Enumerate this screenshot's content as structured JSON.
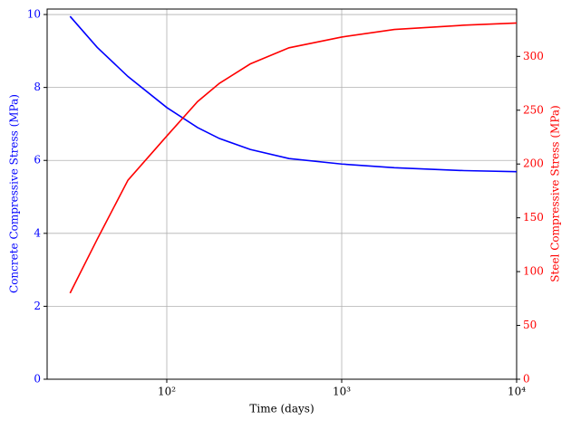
{
  "chart_data": {
    "type": "line",
    "x_label": "Time (days)",
    "y_label": "Concrete Compressive Stress (MPa)",
    "y2_label": "Steel Compressive Stress (MPa)",
    "x": [
      28,
      40,
      60,
      100,
      150,
      200,
      300,
      500,
      1000,
      2000,
      5000,
      10000
    ],
    "series": [
      {
        "name": "Concrete",
        "color": "#0000ff",
        "values": [
          9.95,
          9.1,
          8.3,
          7.45,
          6.9,
          6.6,
          6.3,
          6.05,
          5.9,
          5.8,
          5.72,
          5.69
        ]
      },
      {
        "name": "Steel",
        "color": "#ff0000",
        "axis": "y2",
        "values": [
          80,
          130,
          185,
          226,
          258,
          275,
          293,
          308,
          318,
          325,
          329,
          331
        ]
      }
    ],
    "xscale": "log",
    "xlim": [
      20.7,
      10000
    ],
    "xticks": [
      {
        "value": 100,
        "label": "10²"
      },
      {
        "value": 1000,
        "label": "10³"
      },
      {
        "value": 10000,
        "label": "10⁴"
      }
    ],
    "ylim": [
      0,
      10.15
    ],
    "yticks": [
      0,
      2,
      4,
      6,
      8,
      10
    ],
    "y2lim": [
      0,
      344
    ],
    "y2ticks": [
      0,
      50,
      100,
      150,
      200,
      250,
      300
    ],
    "grid": true
  }
}
